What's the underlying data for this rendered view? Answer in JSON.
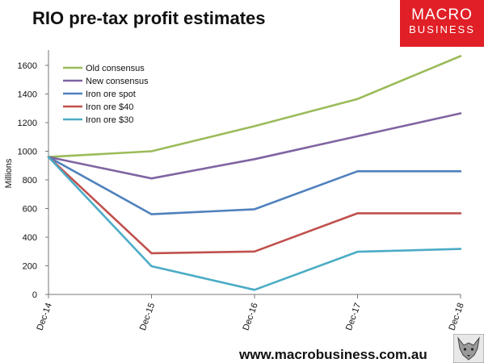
{
  "title": "RIO pre-tax profit estimates",
  "logo": {
    "line1": "MACRO",
    "line2": "BUSINESS"
  },
  "footer_url": "www.macrobusiness.com.au",
  "chart_data": {
    "type": "line",
    "categories": [
      "Dec-14",
      "Dec-15",
      "Dec-16",
      "Dec-17",
      "Dec-18"
    ],
    "ylabel": "Millions",
    "ylim": [
      0,
      1700
    ],
    "yticks": [
      0,
      200,
      400,
      600,
      800,
      1000,
      1200,
      1400,
      1600
    ],
    "legend_position": "top-left",
    "grid": false,
    "series": [
      {
        "name": "Old consensus",
        "color": "#9bbb59",
        "values": [
          960,
          1000,
          1175,
          1365,
          1665
        ]
      },
      {
        "name": "New consensus",
        "color": "#8064a2",
        "values": [
          960,
          810,
          945,
          1105,
          1265
        ]
      },
      {
        "name": "Iron ore spot",
        "color": "#4f81bd",
        "values": [
          960,
          560,
          595,
          860,
          860
        ]
      },
      {
        "name": "Iron ore $40",
        "color": "#c0504d",
        "values": [
          960,
          288,
          300,
          567,
          567
        ]
      },
      {
        "name": "Iron ore $30",
        "color": "#4bacc6",
        "values": [
          960,
          197,
          32,
          298,
          318
        ]
      }
    ]
  }
}
